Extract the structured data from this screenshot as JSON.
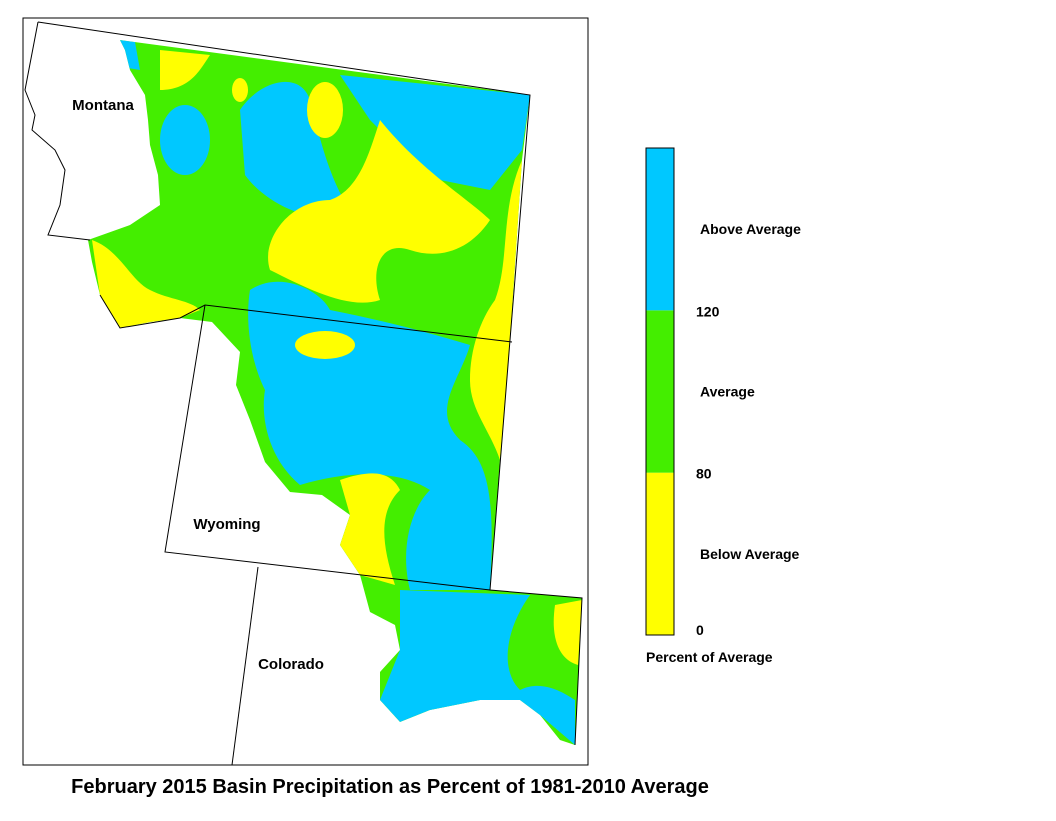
{
  "map": {
    "title": "February 2015 Basin Precipitation as Percent of 1981-2010 Average",
    "states": [
      "Montana",
      "Wyoming",
      "Colorado"
    ],
    "legend": {
      "title": "Percent of Average",
      "bands": [
        {
          "label": "Below Average",
          "color": "#ffff00"
        },
        {
          "label": "Average",
          "color": "#44ee00"
        },
        {
          "label": "Above Average",
          "color": "#00c8ff"
        }
      ],
      "ticks": [
        0,
        80,
        120
      ]
    }
  }
}
